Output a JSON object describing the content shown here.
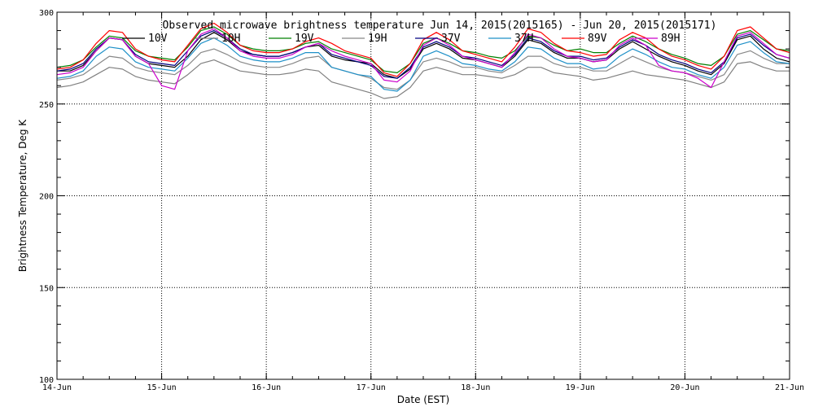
{
  "chart_data": {
    "type": "line",
    "title": "Observed microwave brightness temperature Jun 14, 2015(2015165) - Jun 20, 2015(2015171)",
    "xlabel": "Date (EST)",
    "ylabel": "Brightness Temperature, Deg K",
    "xlim": [
      "2015-06-14",
      "2015-06-21"
    ],
    "ylim": [
      100,
      300
    ],
    "y_ticks": [
      100,
      150,
      200,
      250,
      300
    ],
    "x_ticks": [
      {
        "date": "2015-06-14",
        "label": "14-Jun"
      },
      {
        "date": "2015-06-15",
        "label": "15-Jun"
      },
      {
        "date": "2015-06-16",
        "label": "16-Jun"
      },
      {
        "date": "2015-06-17",
        "label": "17-Jun"
      },
      {
        "date": "2015-06-18",
        "label": "18-Jun"
      },
      {
        "date": "2015-06-19",
        "label": "19-Jun"
      },
      {
        "date": "2015-06-20",
        "label": "20-Jun"
      },
      {
        "date": "2015-06-21",
        "label": "21-Jun"
      }
    ],
    "grid": true,
    "legend_position": "top",
    "x": [
      "2015-06-14T00:00",
      "2015-06-14T03:00",
      "2015-06-14T06:00",
      "2015-06-14T09:00",
      "2015-06-14T12:00",
      "2015-06-14T15:00",
      "2015-06-14T18:00",
      "2015-06-14T21:00",
      "2015-06-15T00:00",
      "2015-06-15T03:00",
      "2015-06-15T06:00",
      "2015-06-15T09:00",
      "2015-06-15T12:00",
      "2015-06-15T15:00",
      "2015-06-15T18:00",
      "2015-06-15T21:00",
      "2015-06-16T00:00",
      "2015-06-16T03:00",
      "2015-06-16T06:00",
      "2015-06-16T09:00",
      "2015-06-16T12:00",
      "2015-06-16T15:00",
      "2015-06-16T18:00",
      "2015-06-16T21:00",
      "2015-06-17T00:00",
      "2015-06-17T03:00",
      "2015-06-17T06:00",
      "2015-06-17T09:00",
      "2015-06-17T12:00",
      "2015-06-17T15:00",
      "2015-06-17T18:00",
      "2015-06-17T21:00",
      "2015-06-18T00:00",
      "2015-06-18T03:00",
      "2015-06-18T06:00",
      "2015-06-18T09:00",
      "2015-06-18T12:00",
      "2015-06-18T15:00",
      "2015-06-18T18:00",
      "2015-06-18T21:00",
      "2015-06-19T00:00",
      "2015-06-19T03:00",
      "2015-06-19T06:00",
      "2015-06-19T09:00",
      "2015-06-19T12:00",
      "2015-06-19T15:00",
      "2015-06-19T18:00",
      "2015-06-19T21:00",
      "2015-06-20T00:00",
      "2015-06-20T03:00",
      "2015-06-20T06:00",
      "2015-06-20T09:00",
      "2015-06-20T12:00",
      "2015-06-20T15:00",
      "2015-06-20T18:00",
      "2015-06-20T21:00",
      "2015-06-21T00:00"
    ],
    "series": [
      {
        "name": "10V",
        "color": "#000000",
        "values": [
          268,
          268,
          271,
          279,
          286,
          285,
          276,
          272,
          271,
          270,
          276,
          285,
          289,
          285,
          279,
          277,
          276,
          276,
          278,
          281,
          282,
          276,
          274,
          273,
          272,
          266,
          264,
          269,
          280,
          283,
          280,
          275,
          274,
          272,
          270,
          276,
          285,
          283,
          278,
          275,
          275,
          273,
          274,
          280,
          284,
          280,
          276,
          273,
          271,
          268,
          266,
          272,
          285,
          287,
          280,
          275,
          273
        ]
      },
      {
        "name": "10H",
        "color": "#808080",
        "values": [
          259,
          260,
          262,
          266,
          270,
          269,
          265,
          263,
          262,
          261,
          266,
          272,
          274,
          271,
          268,
          267,
          266,
          266,
          267,
          269,
          268,
          262,
          260,
          258,
          256,
          253,
          254,
          259,
          268,
          270,
          268,
          266,
          266,
          265,
          264,
          266,
          270,
          270,
          267,
          266,
          265,
          263,
          264,
          266,
          268,
          266,
          265,
          264,
          263,
          261,
          259,
          262,
          272,
          273,
          270,
          268,
          268
        ]
      },
      {
        "name": "19V",
        "color": "#008000",
        "values": [
          270,
          271,
          274,
          281,
          287,
          286,
          279,
          276,
          275,
          274,
          281,
          290,
          292,
          288,
          282,
          280,
          279,
          279,
          280,
          283,
          284,
          280,
          278,
          276,
          274,
          268,
          267,
          272,
          283,
          286,
          283,
          279,
          278,
          276,
          275,
          279,
          287,
          286,
          282,
          279,
          280,
          278,
          278,
          283,
          287,
          284,
          280,
          277,
          275,
          272,
          271,
          276,
          288,
          290,
          285,
          280,
          279
        ]
      },
      {
        "name": "19H",
        "color": "#888888",
        "values": [
          263,
          264,
          266,
          271,
          276,
          275,
          270,
          268,
          267,
          266,
          271,
          278,
          280,
          277,
          273,
          271,
          270,
          270,
          272,
          275,
          276,
          270,
          268,
          266,
          264,
          259,
          258,
          263,
          273,
          275,
          273,
          270,
          270,
          268,
          267,
          271,
          276,
          276,
          272,
          270,
          270,
          268,
          268,
          272,
          276,
          273,
          270,
          268,
          267,
          265,
          263,
          266,
          277,
          279,
          275,
          272,
          272
        ]
      },
      {
        "name": "37V",
        "color": "#000080",
        "values": [
          268,
          269,
          272,
          280,
          286,
          285,
          277,
          273,
          272,
          271,
          279,
          287,
          290,
          286,
          280,
          277,
          276,
          276,
          278,
          281,
          283,
          277,
          275,
          273,
          271,
          265,
          264,
          270,
          281,
          284,
          281,
          276,
          275,
          273,
          271,
          277,
          286,
          284,
          279,
          276,
          276,
          274,
          275,
          281,
          285,
          282,
          277,
          274,
          272,
          269,
          267,
          273,
          286,
          288,
          282,
          277,
          275
        ]
      },
      {
        "name": "37H",
        "color": "#1E90C8",
        "values": [
          264,
          265,
          268,
          276,
          281,
          280,
          273,
          270,
          269,
          268,
          275,
          283,
          286,
          282,
          276,
          274,
          273,
          273,
          275,
          278,
          278,
          270,
          268,
          266,
          265,
          258,
          257,
          263,
          276,
          279,
          276,
          272,
          271,
          269,
          268,
          273,
          281,
          280,
          275,
          272,
          272,
          269,
          270,
          276,
          280,
          277,
          273,
          270,
          269,
          266,
          264,
          270,
          282,
          284,
          278,
          273,
          272
        ]
      },
      {
        "name": "89V",
        "color": "#FF0000",
        "values": [
          269,
          270,
          274,
          283,
          290,
          289,
          280,
          276,
          274,
          273,
          282,
          291,
          294,
          289,
          282,
          279,
          278,
          278,
          280,
          284,
          286,
          283,
          279,
          277,
          275,
          267,
          265,
          272,
          285,
          289,
          285,
          279,
          277,
          275,
          273,
          281,
          291,
          289,
          283,
          279,
          278,
          276,
          277,
          285,
          289,
          286,
          280,
          276,
          274,
          271,
          269,
          276,
          290,
          292,
          286,
          280,
          278
        ]
      },
      {
        "name": "89H",
        "color": "#CC00CC",
        "values": [
          266,
          267,
          270,
          279,
          286,
          285,
          276,
          272,
          260,
          258,
          279,
          288,
          291,
          286,
          279,
          276,
          275,
          275,
          277,
          281,
          283,
          279,
          276,
          274,
          272,
          263,
          262,
          268,
          282,
          286,
          282,
          276,
          274,
          272,
          270,
          278,
          288,
          286,
          280,
          276,
          275,
          273,
          274,
          282,
          286,
          282,
          271,
          268,
          267,
          264,
          259,
          273,
          287,
          289,
          283,
          277,
          275
        ]
      }
    ]
  }
}
